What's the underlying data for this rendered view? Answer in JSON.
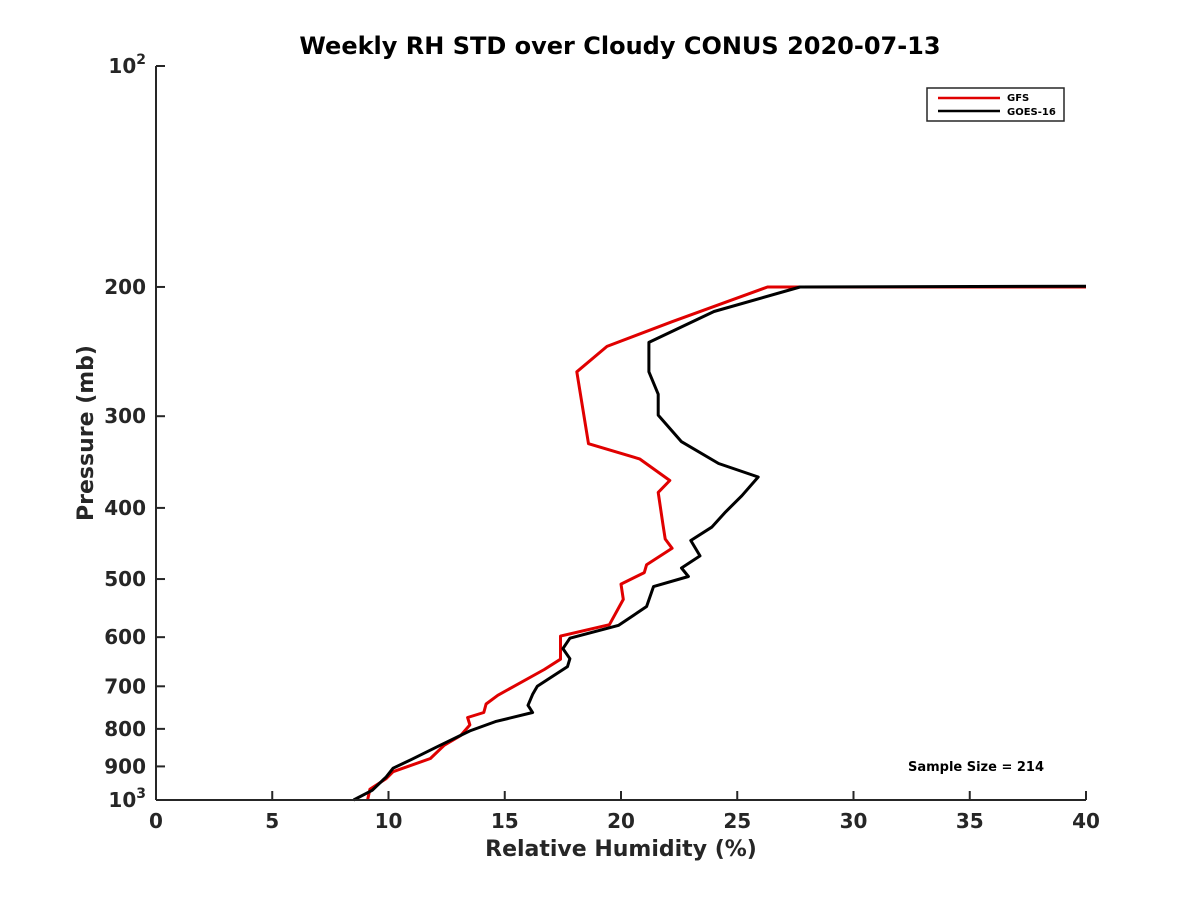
{
  "chart_data": {
    "type": "line",
    "title": "Weekly RH STD over Cloudy CONUS 2020-07-13",
    "xlabel": "Relative Humidity (%)",
    "ylabel": "Pressure (mb)",
    "xlim": [
      0,
      40
    ],
    "ylim": [
      100,
      1000
    ],
    "y_scale": "log",
    "y_reversed": true,
    "x_ticks": [
      0,
      5,
      10,
      15,
      20,
      25,
      30,
      35,
      40
    ],
    "x_tick_labels": [
      "0",
      "5",
      "10",
      "15",
      "20",
      "25",
      "30",
      "35",
      "40"
    ],
    "y_ticks": [
      {
        "value": 100,
        "base": "10",
        "exp": "2"
      },
      {
        "value": 200,
        "label": "200"
      },
      {
        "value": 300,
        "label": "300"
      },
      {
        "value": 400,
        "label": "400"
      },
      {
        "value": 500,
        "label": "500"
      },
      {
        "value": 600,
        "label": "600"
      },
      {
        "value": 700,
        "label": "700"
      },
      {
        "value": 800,
        "label": "800"
      },
      {
        "value": 900,
        "label": "900"
      },
      {
        "value": 1000,
        "base": "10",
        "exp": "3"
      }
    ],
    "grid": false,
    "legend_position": "top-right",
    "annotation": "Sample Size = 214",
    "series": [
      {
        "name": "GFS",
        "color": "#e00000",
        "points": [
          [
            40.0,
            200
          ],
          [
            26.3,
            200
          ],
          [
            22.2,
            223
          ],
          [
            19.4,
            241
          ],
          [
            18.1,
            261
          ],
          [
            18.6,
            327
          ],
          [
            20.8,
            343
          ],
          [
            22.1,
            367
          ],
          [
            21.6,
            381
          ],
          [
            21.8,
            421
          ],
          [
            21.9,
            441
          ],
          [
            22.2,
            454
          ],
          [
            21.1,
            478
          ],
          [
            21.0,
            490
          ],
          [
            20.0,
            508
          ],
          [
            20.1,
            533
          ],
          [
            19.5,
            577
          ],
          [
            17.4,
            598
          ],
          [
            17.4,
            617
          ],
          [
            17.4,
            643
          ],
          [
            16.7,
            664
          ],
          [
            15.4,
            700
          ],
          [
            14.7,
            720
          ],
          [
            14.2,
            740
          ],
          [
            14.1,
            760
          ],
          [
            13.4,
            772
          ],
          [
            13.5,
            790
          ],
          [
            13.1,
            817
          ],
          [
            12.4,
            842
          ],
          [
            11.8,
            878
          ],
          [
            10.2,
            915
          ],
          [
            9.9,
            935
          ],
          [
            9.2,
            967
          ],
          [
            9.1,
            1000
          ]
        ]
      },
      {
        "name": "GOES-16",
        "color": "#000000",
        "points": [
          [
            40.0,
            199.5
          ],
          [
            27.7,
            200
          ],
          [
            24.0,
            216
          ],
          [
            21.2,
            238
          ],
          [
            21.2,
            261
          ],
          [
            21.6,
            280
          ],
          [
            21.6,
            299
          ],
          [
            22.6,
            325
          ],
          [
            24.2,
            348
          ],
          [
            25.9,
            363
          ],
          [
            25.2,
            385
          ],
          [
            24.5,
            405
          ],
          [
            23.9,
            425
          ],
          [
            23.0,
            443
          ],
          [
            23.4,
            465
          ],
          [
            22.6,
            483
          ],
          [
            22.9,
            496
          ],
          [
            21.4,
            512
          ],
          [
            21.1,
            545
          ],
          [
            19.9,
            578
          ],
          [
            17.8,
            602
          ],
          [
            17.5,
            622
          ],
          [
            17.8,
            642
          ],
          [
            17.7,
            658
          ],
          [
            16.4,
            700
          ],
          [
            16.2,
            718
          ],
          [
            16.0,
            743
          ],
          [
            16.2,
            760
          ],
          [
            14.6,
            782
          ],
          [
            13.5,
            805
          ],
          [
            12.1,
            846
          ],
          [
            11.0,
            880
          ],
          [
            10.2,
            905
          ],
          [
            9.9,
            930
          ],
          [
            9.3,
            970
          ],
          [
            8.5,
            1000
          ]
        ]
      }
    ]
  }
}
